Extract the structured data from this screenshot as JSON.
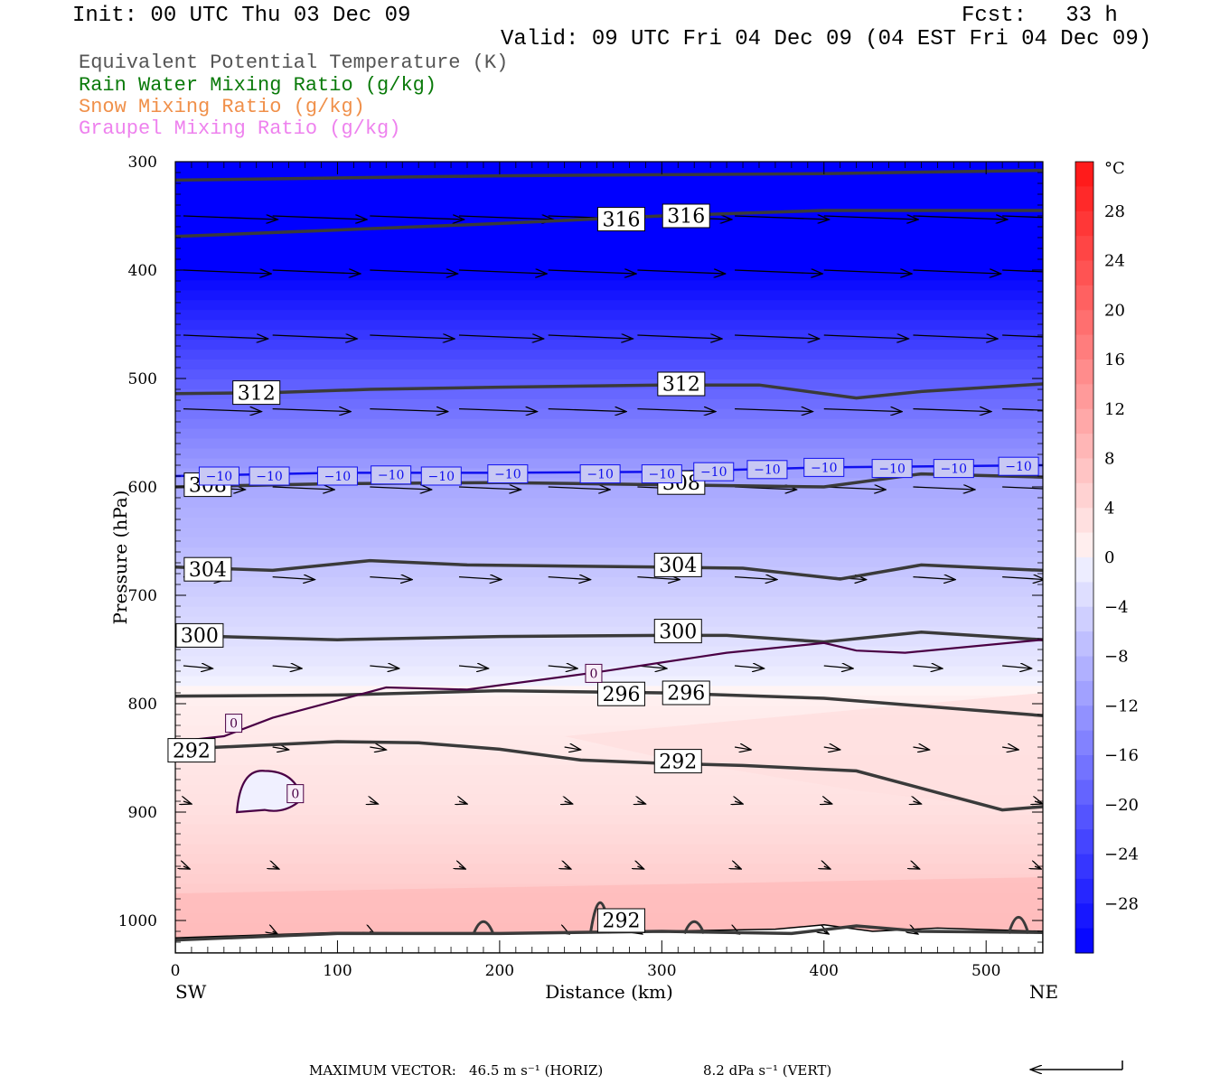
{
  "header": {
    "init": "Init: 00 UTC Thu 03 Dec 09",
    "fcst": "Fcst:   33 h",
    "valid": "Valid: 09 UTC Fri 04 Dec 09 (04 EST Fri 04 Dec 09)"
  },
  "legend": [
    {
      "label": "Equivalent Potential Temperature (K)",
      "color": "#555555"
    },
    {
      "label": "Rain Water Mixing Ratio (g/kg)",
      "color": "#0a7a0a"
    },
    {
      "label": "Snow Mixing Ratio (g/kg)",
      "color": "#f0904a"
    },
    {
      "label": "Graupel Mixing Ratio (g/kg)",
      "color": "#ee82ee"
    }
  ],
  "footer": {
    "max_vector_label": "MAXIMUM VECTOR:",
    "horiz": "46.5 m s⁻¹ (HORIZ)",
    "vert": "8.2 dPa s⁻¹ (VERT)"
  },
  "chart_data": {
    "type": "contour",
    "xlabel": "Distance (km)",
    "ylabel": "Pressure (hPa)",
    "xlim": [
      0,
      535
    ],
    "ylim": [
      1030,
      300
    ],
    "x_ticks": [
      0,
      100,
      200,
      300,
      400,
      500
    ],
    "y_ticks": [
      300,
      400,
      500,
      600,
      700,
      800,
      900,
      1000
    ],
    "x_end_labels": {
      "left": "SW",
      "right": "NE"
    },
    "colorbar": {
      "unit": "°C",
      "ticks": [
        28,
        24,
        20,
        16,
        12,
        8,
        4,
        0,
        -4,
        -8,
        -12,
        -16,
        -20,
        -24,
        -28
      ],
      "range": [
        -32,
        32
      ]
    },
    "temperature_bands": [
      {
        "p": 300,
        "t": -40
      },
      {
        "p": 400,
        "t": -32
      },
      {
        "p": 450,
        "t": -26
      },
      {
        "p": 500,
        "t": -20
      },
      {
        "p": 560,
        "t": -14
      },
      {
        "p": 600,
        "t": -10
      },
      {
        "p": 650,
        "t": -8
      },
      {
        "p": 700,
        "t": -5
      },
      {
        "p": 760,
        "t": -2
      },
      {
        "p": 800,
        "t": 1
      },
      {
        "p": 900,
        "t": 3
      },
      {
        "p": 950,
        "t": 5
      },
      {
        "p": 1030,
        "t": 8
      }
    ],
    "theta_e_contours": [
      {
        "value": 316,
        "points": [
          [
            0,
            317
          ],
          [
            100,
            315
          ],
          [
            200,
            313
          ],
          [
            300,
            312
          ],
          [
            400,
            311
          ],
          [
            535,
            308
          ]
        ],
        "labels": [
          {
            "x": 275,
            "p": 353,
            "text": "316"
          },
          {
            "x": 315,
            "p": 350,
            "text": "316"
          }
        ]
      },
      {
        "value": 316,
        "points": [
          [
            0,
            369
          ],
          [
            100,
            363
          ],
          [
            200,
            357
          ],
          [
            300,
            350
          ],
          [
            400,
            345
          ],
          [
            535,
            345
          ]
        ],
        "labels": []
      },
      {
        "value": 312,
        "points": [
          [
            0,
            514
          ],
          [
            60,
            513
          ],
          [
            120,
            510
          ],
          [
            200,
            508
          ],
          [
            300,
            506
          ],
          [
            360,
            506
          ],
          [
            420,
            518
          ],
          [
            460,
            512
          ],
          [
            535,
            505
          ]
        ],
        "labels": [
          {
            "x": 50,
            "p": 513,
            "text": "312"
          },
          {
            "x": 312,
            "p": 505,
            "text": "312"
          }
        ]
      },
      {
        "value": 308,
        "points": [
          [
            0,
            600
          ],
          [
            100,
            597
          ],
          [
            200,
            596
          ],
          [
            300,
            598
          ],
          [
            400,
            600
          ],
          [
            460,
            588
          ],
          [
            535,
            591
          ]
        ],
        "labels": [
          {
            "x": 20,
            "p": 598,
            "text": "308"
          },
          {
            "x": 312,
            "p": 596,
            "text": "308"
          }
        ]
      },
      {
        "value": 304,
        "points": [
          [
            0,
            674
          ],
          [
            60,
            677
          ],
          [
            120,
            668
          ],
          [
            180,
            672
          ],
          [
            300,
            674
          ],
          [
            350,
            675
          ],
          [
            410,
            685
          ],
          [
            460,
            672
          ],
          [
            535,
            677
          ]
        ],
        "labels": [
          {
            "x": 20,
            "p": 676,
            "text": "304"
          },
          {
            "x": 310,
            "p": 672,
            "text": "304"
          }
        ]
      },
      {
        "value": 300,
        "points": [
          [
            0,
            737
          ],
          [
            100,
            741
          ],
          [
            200,
            738
          ],
          [
            300,
            737
          ],
          [
            340,
            737
          ],
          [
            400,
            743
          ],
          [
            460,
            734
          ],
          [
            535,
            741
          ]
        ],
        "labels": [
          {
            "x": 15,
            "p": 737,
            "text": "300"
          },
          {
            "x": 310,
            "p": 733,
            "text": "300"
          }
        ]
      },
      {
        "value": 296,
        "points": [
          [
            0,
            793
          ],
          [
            100,
            792
          ],
          [
            200,
            788
          ],
          [
            300,
            790
          ],
          [
            400,
            795
          ],
          [
            535,
            811
          ]
        ],
        "labels": [
          {
            "x": 275,
            "p": 791,
            "text": "296"
          },
          {
            "x": 315,
            "p": 790,
            "text": "296"
          }
        ]
      },
      {
        "value": 292,
        "points": [
          [
            0,
            842
          ],
          [
            100,
            835
          ],
          [
            150,
            836
          ],
          [
            200,
            842
          ],
          [
            250,
            852
          ],
          [
            300,
            855
          ],
          [
            350,
            857
          ],
          [
            420,
            862
          ],
          [
            470,
            882
          ],
          [
            510,
            898
          ],
          [
            535,
            895
          ]
        ],
        "labels": [
          {
            "x": 10,
            "p": 843,
            "text": "292"
          },
          {
            "x": 310,
            "p": 853,
            "text": "292"
          }
        ]
      },
      {
        "value": 292,
        "points": [
          [
            0,
            1018
          ],
          [
            100,
            1012
          ],
          [
            200,
            1012
          ],
          [
            300,
            1010
          ],
          [
            380,
            1012
          ],
          [
            420,
            1005
          ],
          [
            460,
            1010
          ],
          [
            535,
            1011
          ]
        ],
        "labels": [
          {
            "x": 275,
            "p": 1000,
            "text": "292"
          }
        ]
      }
    ],
    "isotherm_minus10": {
      "value": -10,
      "points": [
        [
          0,
          590
        ],
        [
          100,
          587
        ],
        [
          200,
          587
        ],
        [
          300,
          586
        ],
        [
          400,
          582
        ],
        [
          535,
          580
        ]
      ],
      "labels": [
        {
          "x": 27,
          "p": 590,
          "text": "−10"
        },
        {
          "x": 58,
          "p": 590,
          "text": "−10"
        },
        {
          "x": 100,
          "p": 590,
          "text": "−10"
        },
        {
          "x": 133,
          "p": 589,
          "text": "−10"
        },
        {
          "x": 164,
          "p": 590,
          "text": "−10"
        },
        {
          "x": 205,
          "p": 588,
          "text": "−10"
        },
        {
          "x": 262,
          "p": 588,
          "text": "−10"
        },
        {
          "x": 300,
          "p": 588,
          "text": "−10"
        },
        {
          "x": 332,
          "p": 586,
          "text": "−10"
        },
        {
          "x": 365,
          "p": 584,
          "text": "−10"
        },
        {
          "x": 400,
          "p": 582,
          "text": "−10"
        },
        {
          "x": 442,
          "p": 583,
          "text": "−10"
        },
        {
          "x": 480,
          "p": 583,
          "text": "−10"
        },
        {
          "x": 520,
          "p": 581,
          "text": "−10"
        }
      ]
    },
    "isotherm_zero": {
      "value": 0,
      "points": [
        [
          0,
          835
        ],
        [
          30,
          830
        ],
        [
          60,
          813
        ],
        [
          130,
          785
        ],
        [
          180,
          787
        ],
        [
          260,
          771
        ],
        [
          340,
          753
        ],
        [
          400,
          744
        ],
        [
          420,
          751
        ],
        [
          450,
          753
        ],
        [
          535,
          741
        ]
      ],
      "labels": [
        {
          "x": 36,
          "p": 818,
          "text": "0"
        },
        {
          "x": 258,
          "p": 772,
          "text": "0"
        },
        {
          "x": 74,
          "p": 883,
          "text": "0"
        }
      ]
    },
    "wind_vectors_km_hpa": "arrows drawn along pressure rows at 350, 400, 460, 528, 600, 683, 765, 840, 890, 950, 1010 hPa"
  }
}
